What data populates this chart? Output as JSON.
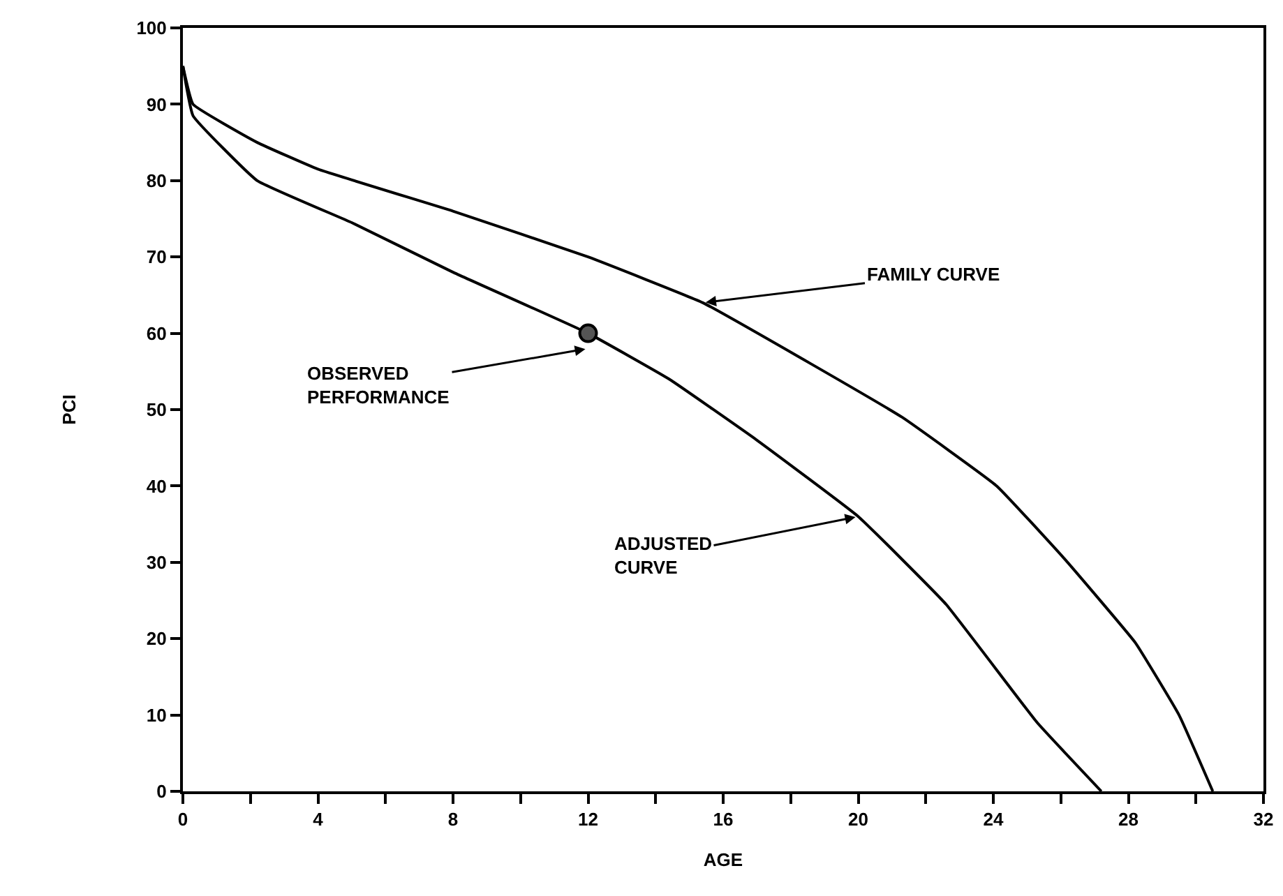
{
  "chart_data": {
    "type": "line",
    "xlabel": "AGE",
    "ylabel": "PCI",
    "xlim": [
      0,
      32
    ],
    "ylim": [
      0,
      100
    ],
    "xticks": [
      0,
      {
        "value": 2,
        "label": null
      },
      4,
      {
        "value": 6,
        "label": null
      },
      8,
      {
        "value": 10,
        "label": null
      },
      12,
      {
        "value": 14,
        "label": null
      },
      16,
      {
        "value": 18,
        "label": null
      },
      20,
      {
        "value": 22,
        "label": null
      },
      24,
      {
        "value": 26,
        "label": null
      },
      28,
      {
        "value": 30,
        "label": null
      },
      32
    ],
    "yticks": [
      0,
      10,
      20,
      30,
      40,
      50,
      60,
      70,
      80,
      90,
      100
    ],
    "grid": false,
    "marker": "none",
    "line_style": "solid",
    "series": [
      {
        "color": "#000000",
        "x": [
          0,
          0.3,
          2.2,
          4,
          8,
          12,
          15.4,
          18.6,
          21.3,
          24.1,
          26.1,
          28.2,
          29.5,
          30.5
        ],
        "values": [
          95,
          90,
          85,
          81.5,
          76,
          70,
          64,
          56,
          49,
          40,
          30.5,
          19.5,
          10,
          0
        ]
      },
      {
        "color": "#000000",
        "x": [
          0,
          0.3,
          2.2,
          5,
          8,
          12,
          14.4,
          17,
          20,
          22.6,
          25.3,
          27.2
        ],
        "values": [
          95,
          88.5,
          80,
          74.5,
          68,
          60,
          54,
          46,
          36,
          24.5,
          9,
          0
        ]
      },
      {
        "type": "scatter",
        "color": "#555555",
        "marker": "circle",
        "x": [
          12
        ],
        "values": [
          60
        ]
      }
    ],
    "annotations": [
      {
        "text": "FAMILY CURVE",
        "x": 15.4,
        "y": 64
      },
      {
        "text": "OBSERVED\nPERFORMANCE",
        "x": 12,
        "y": 58
      },
      {
        "text": "ADJUSTED\nCURVE",
        "x": 20,
        "y": 36
      }
    ]
  }
}
